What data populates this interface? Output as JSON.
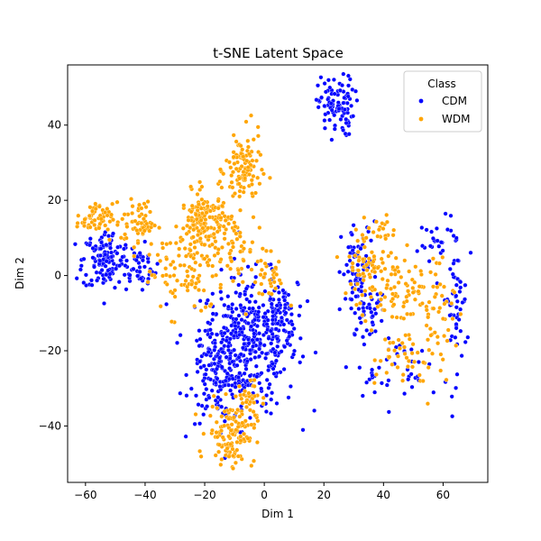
{
  "chart_data": {
    "type": "scatter",
    "title": "t-SNE Latent Space",
    "xlabel": "Dim 1",
    "ylabel": "Dim 2",
    "xlim": [
      -66,
      75
    ],
    "ylim": [
      -55,
      56
    ],
    "x_ticks": [
      -60,
      -40,
      -20,
      0,
      20,
      40,
      60
    ],
    "y_ticks": [
      -40,
      -20,
      0,
      20,
      40
    ],
    "grid": false,
    "legend": {
      "title": "Class",
      "placement": "top-right",
      "entries": [
        {
          "name": "CDM",
          "color": "#0000ff"
        },
        {
          "name": "WDM",
          "color": "#ffa500"
        }
      ]
    },
    "series": [
      {
        "name": "CDM",
        "color": "#0000ff",
        "clusters": [
          {
            "cx": -5,
            "cy": -18,
            "sx": 8,
            "sy": 9,
            "n": 380
          },
          {
            "cx": -15,
            "cy": -25,
            "sx": 5,
            "sy": 7,
            "n": 140
          },
          {
            "cx": 5,
            "cy": -10,
            "sx": 3,
            "sy": 4,
            "n": 60
          },
          {
            "cx": -53,
            "cy": 4,
            "sx": 4,
            "sy": 4,
            "n": 140
          },
          {
            "cx": -42,
            "cy": 2,
            "sx": 3,
            "sy": 3,
            "n": 40
          },
          {
            "cx": 24,
            "cy": 45,
            "sx": 3,
            "sy": 4,
            "n": 100
          },
          {
            "cx": 32,
            "cy": 0,
            "sx": 3,
            "sy": 7,
            "n": 80
          },
          {
            "cx": 35,
            "cy": -10,
            "sx": 3,
            "sy": 3,
            "n": 30
          },
          {
            "cx": 64,
            "cy": -6,
            "sx": 2,
            "sy": 10,
            "n": 60
          },
          {
            "cx": 58,
            "cy": 8,
            "sx": 3,
            "sy": 3,
            "n": 20
          },
          {
            "cx": 50,
            "cy": -25,
            "sx": 6,
            "sy": 4,
            "n": 30
          },
          {
            "cx": 36,
            "cy": -27,
            "sx": 2,
            "sy": 2,
            "n": 12
          }
        ]
      },
      {
        "name": "WDM",
        "color": "#ffa500",
        "clusters": [
          {
            "cx": -20,
            "cy": 14,
            "sx": 4,
            "sy": 4,
            "n": 170
          },
          {
            "cx": -7,
            "cy": 28,
            "sx": 3,
            "sy": 5,
            "n": 110
          },
          {
            "cx": -11,
            "cy": -42,
            "sx": 4,
            "sy": 4,
            "n": 130
          },
          {
            "cx": -6,
            "cy": -32,
            "sx": 2,
            "sy": 2,
            "n": 30
          },
          {
            "cx": -57,
            "cy": 15,
            "sx": 3,
            "sy": 2,
            "n": 60
          },
          {
            "cx": -42,
            "cy": 14,
            "sx": 3,
            "sy": 3,
            "n": 60
          },
          {
            "cx": -28,
            "cy": 2,
            "sx": 6,
            "sy": 6,
            "n": 80
          },
          {
            "cx": -8,
            "cy": 5,
            "sx": 6,
            "sy": 6,
            "n": 60
          },
          {
            "cx": 2,
            "cy": 0,
            "sx": 2,
            "sy": 3,
            "n": 25
          },
          {
            "cx": 36,
            "cy": 3,
            "sx": 5,
            "sy": 5,
            "n": 80
          },
          {
            "cx": 45,
            "cy": -5,
            "sx": 6,
            "sy": 4,
            "n": 60
          },
          {
            "cx": 58,
            "cy": -10,
            "sx": 3,
            "sy": 8,
            "n": 50
          },
          {
            "cx": 47,
            "cy": -22,
            "sx": 5,
            "sy": 4,
            "n": 40
          },
          {
            "cx": 40,
            "cy": 12,
            "sx": 2,
            "sy": 2,
            "n": 15
          }
        ]
      }
    ]
  }
}
